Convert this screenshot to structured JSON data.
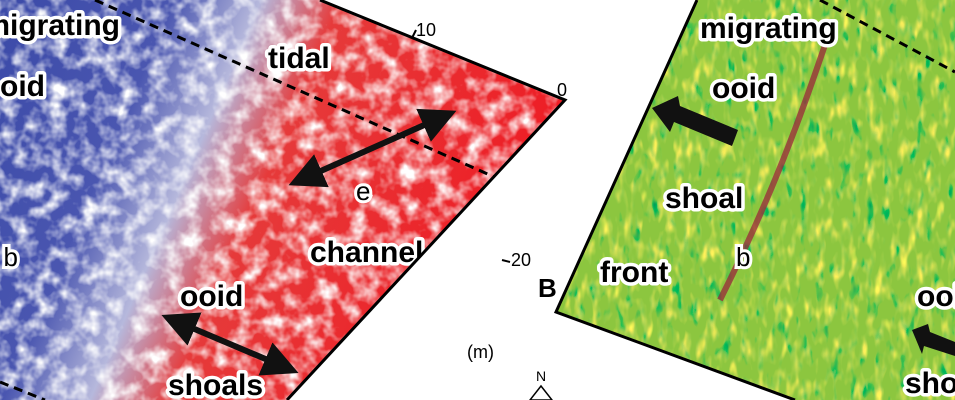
{
  "panel_a": {
    "labels": [
      "migrating",
      "ooid",
      "tidal",
      "e",
      "b",
      "channel",
      "ooid",
      "shoals"
    ],
    "scale": [
      "10",
      "0",
      "20",
      "(m)"
    ]
  },
  "panel_b": {
    "letter": "B",
    "labels": [
      "migrating",
      "ooid",
      "shoal",
      "b",
      "front",
      "ooid",
      "shoals"
    ]
  },
  "north": "N"
}
